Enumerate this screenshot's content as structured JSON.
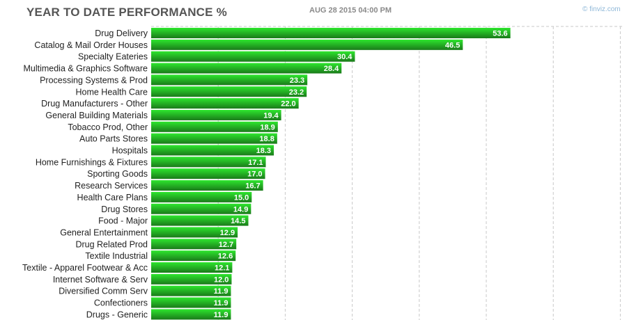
{
  "header": {
    "title": "YEAR TO DATE PERFORMANCE %",
    "timestamp": "AUG 28 2015 04:00 PM",
    "watermark": "© finviz.com"
  },
  "colors": {
    "bar_top": "#2ee62e",
    "bar_bottom": "#1a7a1a",
    "grid": "#c8c8c8"
  },
  "chart_data": {
    "type": "bar",
    "orientation": "horizontal",
    "title": "YEAR TO DATE PERFORMANCE %",
    "xlim": [
      0,
      70
    ],
    "grid": true,
    "categories": [
      "Drug Delivery",
      "Catalog & Mail Order Houses",
      "Specialty Eateries",
      "Multimedia & Graphics Software",
      "Processing Systems & Prod",
      "Home Health Care",
      "Drug Manufacturers - Other",
      "General Building Materials",
      "Tobacco Prod, Other",
      "Auto Parts Stores",
      "Hospitals",
      "Home Furnishings & Fixtures",
      "Sporting Goods",
      "Research Services",
      "Health Care Plans",
      "Drug Stores",
      "Food - Major",
      "General Entertainment",
      "Drug Related Prod",
      "Textile Industrial",
      "Textile - Apparel Footwear & Acc",
      "Internet Software & Serv",
      "Diversified Comm Serv",
      "Confectioners",
      "Drugs - Generic"
    ],
    "values": [
      53.6,
      46.5,
      30.4,
      28.4,
      23.3,
      23.2,
      22.0,
      19.4,
      18.9,
      18.8,
      18.3,
      17.1,
      17.0,
      16.7,
      15.0,
      14.9,
      14.5,
      12.9,
      12.7,
      12.6,
      12.1,
      12.0,
      11.9,
      11.9,
      11.9
    ],
    "value_labels": [
      "53.6",
      "46.5",
      "30.4",
      "28.4",
      "23.3",
      "23.2",
      "22.0",
      "19.4",
      "18.9",
      "18.8",
      "18.3",
      "17.1",
      "17.0",
      "16.7",
      "15.0",
      "14.9",
      "14.5",
      "12.9",
      "12.7",
      "12.6",
      "12.1",
      "12.0",
      "11.9",
      "11.9",
      "11.9"
    ]
  }
}
